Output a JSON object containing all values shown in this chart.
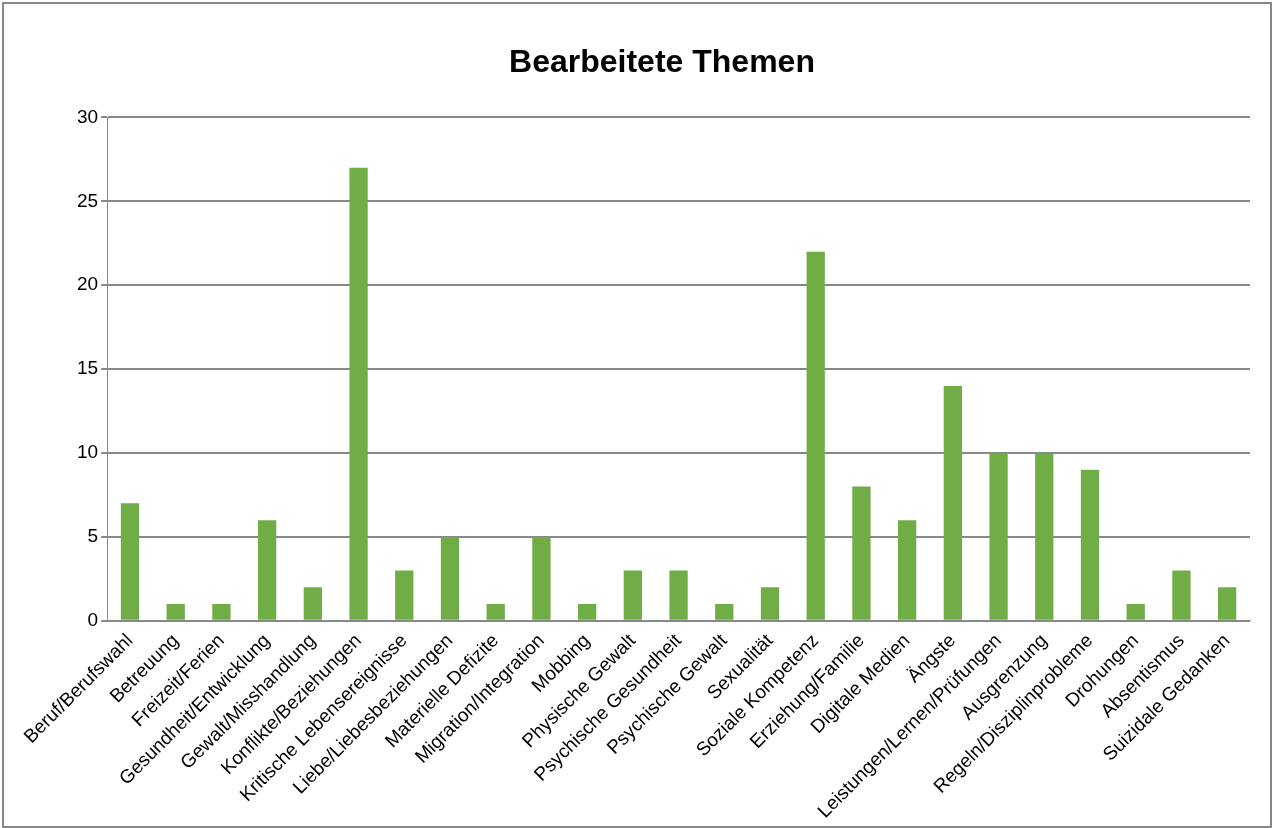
{
  "chart_data": {
    "type": "bar",
    "title": "Bearbeitete Themen",
    "categories": [
      "Beruf/Berufswahl",
      "Betreuung",
      "Freizeit/Ferien",
      "Gesundheit/Entwicklung",
      "Gewalt/Misshandlung",
      "Konflikte/Beziehungen",
      "Kritische Lebensereignisse",
      "Liebe/Liebesbeziehungen",
      "Materielle Defizite",
      "Migration/Integration",
      "Mobbing",
      "Physische Gewalt",
      "Psychische Gesundheit",
      "Psychische Gewalt",
      "Sexualität",
      "Soziale Kompetenz",
      "Erziehung/Familie",
      "Digitale Medien",
      "Ängste",
      "Leistungen/Lernen/Prüfungen",
      "Ausgrenzung",
      "Regeln/Disziplinprobleme",
      "Drohungen",
      "Absentismus",
      "Suizidale Gedanken"
    ],
    "values": [
      7,
      1,
      1,
      6,
      2,
      27,
      3,
      5,
      1,
      5,
      1,
      3,
      3,
      1,
      2,
      22,
      8,
      6,
      14,
      10,
      10,
      9,
      1,
      3,
      2
    ],
    "color": "#70ad47",
    "ylim": [
      0,
      30
    ],
    "yticks": [
      0,
      5,
      10,
      15,
      20,
      25,
      30
    ],
    "grid": "y",
    "legend": false
  }
}
